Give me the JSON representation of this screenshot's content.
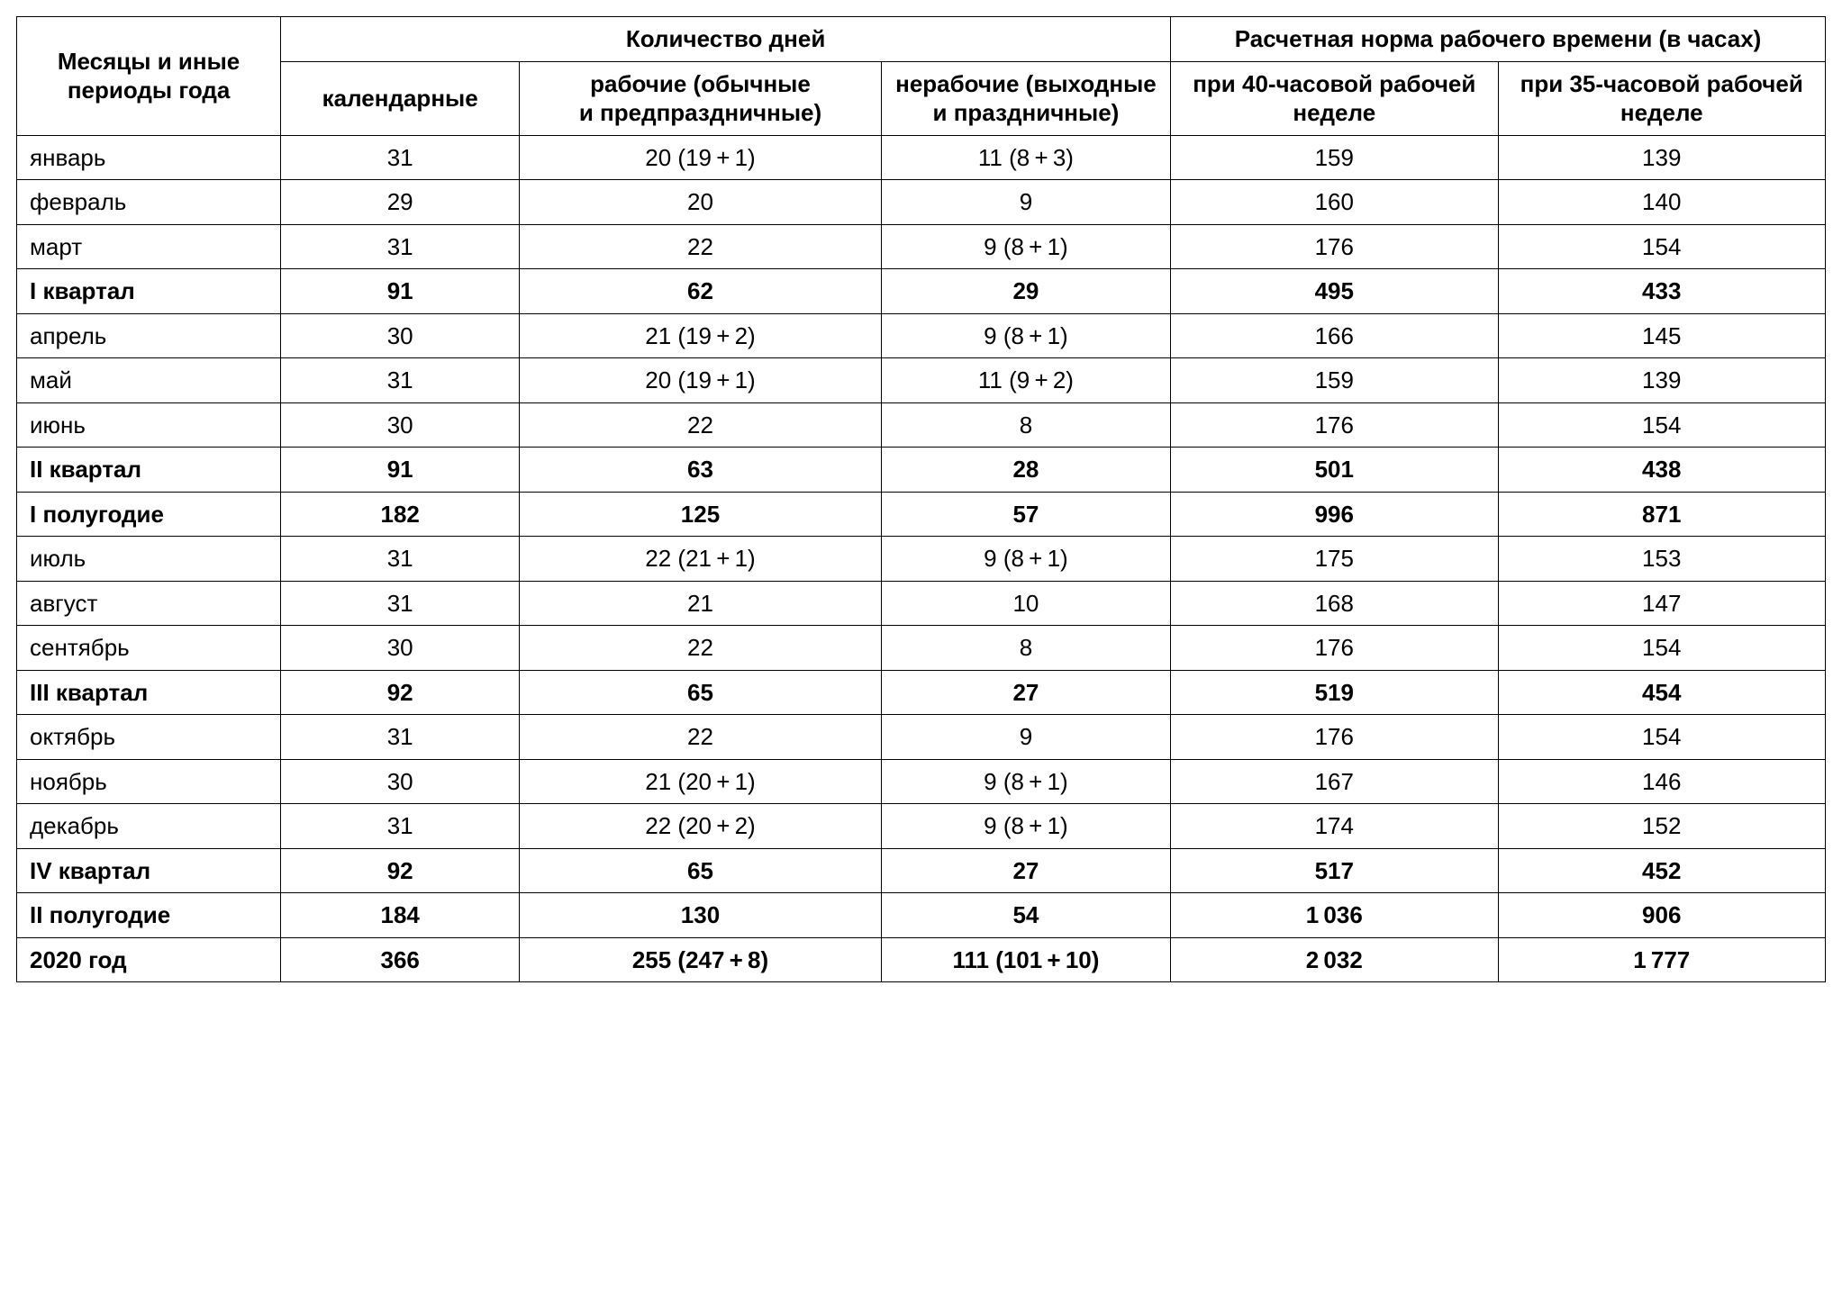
{
  "table": {
    "type": "table",
    "background_color": "#ffffff",
    "border_color": "#000000",
    "text_color": "#000000",
    "font_family": "Arial, Helvetica, sans-serif",
    "header_fontsize": 26,
    "body_fontsize": 26,
    "column_widths_pct": [
      14.6,
      13.2,
      20.0,
      16.0,
      18.1,
      18.1
    ],
    "header": {
      "period": "Месяцы и иные периоды года",
      "days_group": "Количество дней",
      "hours_group": "Расчетная норма рабочего времени (в часах)",
      "calendar": "календарные",
      "working": "рабочие (обычные и предпраздничные)",
      "nonworking": "нерабочие (выходные и праздничные)",
      "week40": "при 40-часовой рабочей неделе",
      "week35": "при 35-часовой рабочей неделе"
    },
    "rows": [
      {
        "period": "январь",
        "calendar": "31",
        "working": "20 (19 + 1)",
        "nonworking": "11 (8 + 3)",
        "h40": "159",
        "h35": "139",
        "bold": false
      },
      {
        "period": "февраль",
        "calendar": "29",
        "working": "20",
        "nonworking": "9",
        "h40": "160",
        "h35": "140",
        "bold": false
      },
      {
        "period": "март",
        "calendar": "31",
        "working": "22",
        "nonworking": "9 (8 + 1)",
        "h40": "176",
        "h35": "154",
        "bold": false
      },
      {
        "period": "I квартал",
        "calendar": "91",
        "working": "62",
        "nonworking": "29",
        "h40": "495",
        "h35": "433",
        "bold": true
      },
      {
        "period": "апрель",
        "calendar": "30",
        "working": "21 (19 + 2)",
        "nonworking": "9 (8 + 1)",
        "h40": "166",
        "h35": "145",
        "bold": false
      },
      {
        "period": "май",
        "calendar": "31",
        "working": "20 (19 + 1)",
        "nonworking": "11 (9 + 2)",
        "h40": "159",
        "h35": "139",
        "bold": false
      },
      {
        "period": "июнь",
        "calendar": "30",
        "working": "22",
        "nonworking": "8",
        "h40": "176",
        "h35": "154",
        "bold": false
      },
      {
        "period": "II квартал",
        "calendar": "91",
        "working": "63",
        "nonworking": "28",
        "h40": "501",
        "h35": "438",
        "bold": true
      },
      {
        "period": "I полугодие",
        "calendar": "182",
        "working": "125",
        "nonworking": "57",
        "h40": "996",
        "h35": "871",
        "bold": true
      },
      {
        "period": "июль",
        "calendar": "31",
        "working": "22 (21 + 1)",
        "nonworking": "9 (8 + 1)",
        "h40": "175",
        "h35": "153",
        "bold": false
      },
      {
        "period": "август",
        "calendar": "31",
        "working": "21",
        "nonworking": "10",
        "h40": "168",
        "h35": "147",
        "bold": false
      },
      {
        "period": "сентябрь",
        "calendar": "30",
        "working": "22",
        "nonworking": "8",
        "h40": "176",
        "h35": "154",
        "bold": false
      },
      {
        "period": "III квартал",
        "calendar": "92",
        "working": "65",
        "nonworking": "27",
        "h40": "519",
        "h35": "454",
        "bold": true
      },
      {
        "period": "октябрь",
        "calendar": "31",
        "working": "22",
        "nonworking": "9",
        "h40": "176",
        "h35": "154",
        "bold": false
      },
      {
        "period": "ноябрь",
        "calendar": "30",
        "working": "21 (20 + 1)",
        "nonworking": "9 (8 + 1)",
        "h40": "167",
        "h35": "146",
        "bold": false
      },
      {
        "period": "декабрь",
        "calendar": "31",
        "working": "22 (20 + 2)",
        "nonworking": "9 (8 + 1)",
        "h40": "174",
        "h35": "152",
        "bold": false
      },
      {
        "period": "IV квартал",
        "calendar": "92",
        "working": "65",
        "nonworking": "27",
        "h40": "517",
        "h35": "452",
        "bold": true
      },
      {
        "period": "II полугодие",
        "calendar": "184",
        "working": "130",
        "nonworking": "54",
        "h40": "1 036",
        "h35": "906",
        "bold": true
      },
      {
        "period": "2020 год",
        "calendar": "366",
        "working": "255 (247 + 8)",
        "nonworking": "111 (101 + 10)",
        "h40": "2 032",
        "h35": "1 777",
        "bold": true
      }
    ]
  }
}
